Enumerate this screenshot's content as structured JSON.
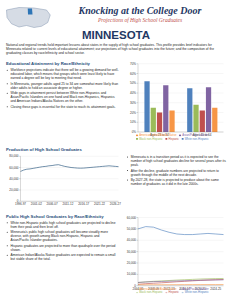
{
  "header": {
    "title": "Knocking at the College Door",
    "subtitle": "Projections of High School Graduates",
    "state": "MINNESOTA"
  },
  "intro": "National and regional trends hold important lessons about states in the supply of high school graduates. This profile provides brief indicators for Minnesota related to: current levels of educational attainment; our projections of high school graduates into the future; and the composition of the graduating classes by race/ethnicity and school sector.",
  "sections": [
    {
      "heading": "Educational Attainment by Race/Ethnicity",
      "bullets": [
        "Workforce projections indicate that there will be a growing demand for well-educated labor, which means that groups which were least likely to have earned a degree will be key to meeting that need.",
        "In Minnesota, younger adults aged 25 to 34 are somewhat more likely than older adults to hold an associate degree or higher.",
        "Wide gaps in attainment persist between White non-Hispanics and Asian/Pacific Islanders on one hand and Black non-Hispanics, Hispanics and American Indians/Alaska Natives on the other.",
        "Closing these gaps is essential for the state to reach its attainment goals."
      ]
    },
    {
      "heading": "Production of High School Graduates",
      "bullets": [
        "Minnesota is in a transition period as it is expected to see the number of high school graduates decline for several years after its peak.",
        "After the decline, graduate numbers are projected to return to growth through the middle of the next decade.",
        "By 2027-28, the state is projected to produce about the same number of graduates as it did in the late 2000s."
      ]
    },
    {
      "heading": "Public High School Graduates by Race/Ethnicity",
      "bullets": [
        "White non-Hispanic public high school graduates are projected to decline from their peak and then level off.",
        "Minnesota's public high school graduates will become steadily more diverse, with growth among Black non-Hispanic, Hispanic and Asian/Pacific Islander graduates.",
        "Hispanic graduates are projected to more than quadruple over the period shown.",
        "American Indian/Alaska Native graduates are expected to remain a small but stable share of the total."
      ]
    }
  ],
  "chart_data": [
    {
      "type": "bar",
      "categories": [
        "Ages 25 to 34",
        "Ages 45 to 64"
      ],
      "series": [
        {
          "name": "White non-Hispanic",
          "color": "#4f81bd",
          "values": [
            52,
            45
          ]
        },
        {
          "name": "Black non-Hispanic",
          "color": "#9bbb59",
          "values": [
            25,
            28
          ]
        },
        {
          "name": "Hispanic",
          "color": "#c0504d",
          "values": [
            20,
            22
          ]
        },
        {
          "name": "Asian/Pacific Islander",
          "color": "#8064a2",
          "values": [
            48,
            46
          ]
        },
        {
          "name": "American Indian/Alaska Native",
          "color": "#f79646",
          "values": [
            22,
            25
          ]
        }
      ],
      "ylim": [
        0,
        70
      ],
      "yticks": [
        {
          "value": 0,
          "label": "0%"
        },
        {
          "value": 10,
          "label": "10%"
        },
        {
          "value": 20,
          "label": "20%"
        },
        {
          "value": 30,
          "label": "30%"
        },
        {
          "value": 40,
          "label": "40%"
        },
        {
          "value": 50,
          "label": "50%"
        },
        {
          "value": 60,
          "label": "60%"
        },
        {
          "value": 70,
          "label": "70%"
        }
      ],
      "grid": true,
      "legend": "bottom"
    },
    {
      "type": "line",
      "categories": [
        "1996-97",
        null,
        null,
        null,
        null,
        "2001-02",
        null,
        null,
        null,
        null,
        "2006-07",
        null,
        null,
        null,
        null,
        "2011-12",
        null,
        null,
        null,
        null,
        "2016-17",
        null,
        null,
        null,
        null,
        "2021-22",
        null,
        null,
        null,
        null,
        "2026-27",
        null
      ],
      "values": [
        53000,
        55500,
        57000,
        57500,
        58500,
        59500,
        60500,
        61500,
        62000,
        63000,
        63500,
        64500,
        65000,
        63500,
        62000,
        61000,
        60000,
        59500,
        59000,
        58800,
        59000,
        59500,
        60000,
        60500,
        61000,
        61500,
        62000,
        62500,
        63000,
        62500,
        62000,
        61500
      ],
      "color": "#1f4e79",
      "ylim": [
        0,
        80000
      ],
      "yticks": [
        0,
        {
          "value": 20000,
          "label": "20,000"
        },
        {
          "value": 40000,
          "label": "40,000"
        },
        {
          "value": 60000,
          "label": "60,000"
        },
        {
          "value": 80000,
          "label": "80,000"
        }
      ],
      "grid": true
    },
    {
      "type": "line",
      "categories": [
        "2004-05",
        null,
        "2008-09",
        null,
        "2012-13",
        null,
        "2016-17",
        null,
        "2020-21",
        null,
        "2024-25",
        null
      ],
      "series": [
        {
          "name": "White non-Hispanic",
          "color": "#4f81bd",
          "values": [
            50000,
            52000,
            51500,
            49000,
            47000,
            45500,
            45000,
            45000,
            45500,
            46000,
            45500,
            45000
          ]
        },
        {
          "name": "Black non-Hispanic",
          "color": "#9bbb59",
          "values": [
            2800,
            3400,
            3900,
            4200,
            4600,
            5000,
            5300,
            5600,
            5900,
            6100,
            6300,
            6400
          ]
        },
        {
          "name": "Hispanic",
          "color": "#c0504d",
          "values": [
            1300,
            1800,
            2200,
            2600,
            3000,
            3500,
            3900,
            4300,
            4700,
            5000,
            5300,
            5500
          ]
        },
        {
          "name": "Asian/Pacific Islander",
          "color": "#8064a2",
          "values": [
            2900,
            3300,
            3600,
            3800,
            4000,
            4200,
            4400,
            4600,
            4800,
            5000,
            5100,
            5200
          ]
        },
        {
          "name": "American Indian/Alaska Native",
          "color": "#f79646",
          "values": [
            800,
            850,
            900,
            900,
            920,
            950,
            980,
            1000,
            1000,
            1020,
            1030,
            1040
          ]
        }
      ],
      "ylim": [
        0,
        60000
      ],
      "yticks": [
        0,
        {
          "value": 10000,
          "label": "10,000"
        },
        {
          "value": 20000,
          "label": "20,000"
        },
        {
          "value": 30000,
          "label": "30,000"
        },
        {
          "value": 40000,
          "label": "40,000"
        },
        {
          "value": 50000,
          "label": "50,000"
        },
        {
          "value": 60000,
          "label": "60,000"
        }
      ],
      "grid": true,
      "legend": "bottom"
    }
  ]
}
